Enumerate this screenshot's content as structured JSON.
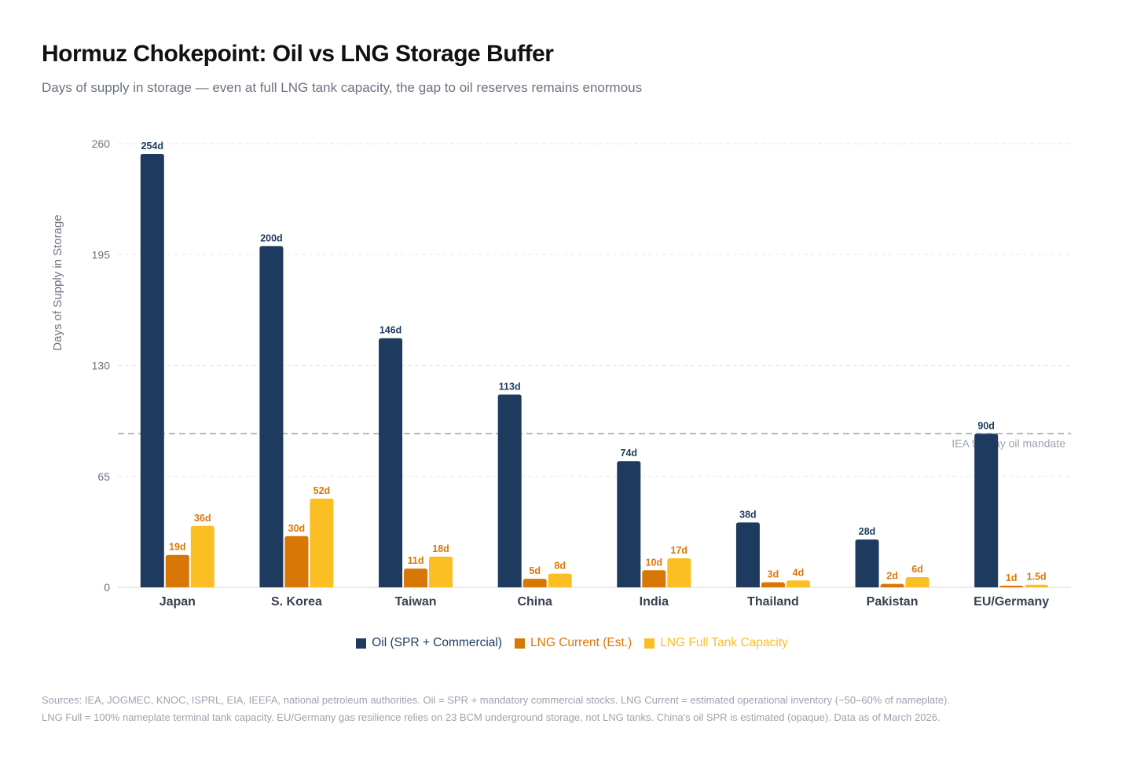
{
  "chart_data": {
    "type": "bar",
    "title": "Hormuz Chokepoint: Oil vs LNG Storage Buffer",
    "subtitle": "Days of supply in storage — even at full LNG tank capacity, the gap to oil reserves remains enormous",
    "ylabel": "Days of Supply in Storage",
    "xlabel": "",
    "ylim": [
      0,
      260
    ],
    "yticks": [
      0,
      65,
      130,
      195,
      260
    ],
    "grid": true,
    "categories": [
      "Japan",
      "S. Korea",
      "Taiwan",
      "China",
      "India",
      "Thailand",
      "Pakistan",
      "EU/Germany"
    ],
    "series": [
      {
        "name": "Oil (SPR + Commercial)",
        "color": "#1e3a5f",
        "label_color": "#1e3a5f",
        "values": [
          254,
          200,
          146,
          113,
          74,
          38,
          28,
          90
        ],
        "labels": [
          "254d",
          "200d",
          "146d",
          "113d",
          "74d",
          "38d",
          "28d",
          "90d"
        ]
      },
      {
        "name": "LNG Current (Est.)",
        "color": "#d97706",
        "label_color": "#d97706",
        "values": [
          19,
          30,
          11,
          5,
          10,
          3,
          2,
          1
        ],
        "labels": [
          "19d",
          "30d",
          "11d",
          "5d",
          "10d",
          "3d",
          "2d",
          "1d"
        ]
      },
      {
        "name": "LNG Full Tank Capacity",
        "color": "#fbbf24",
        "label_color": "#d97706",
        "values": [
          36,
          52,
          18,
          8,
          17,
          4,
          6,
          1.5
        ],
        "labels": [
          "36d",
          "52d",
          "18d",
          "8d",
          "17d",
          "4d",
          "6d",
          "1.5d"
        ]
      }
    ],
    "reference_line": {
      "value": 90,
      "label": "IEA 90-day oil mandate"
    },
    "legend_placement": "bottom-center"
  },
  "footer": {
    "line1": "Sources: IEA, JOGMEC, KNOC, ISPRL, EIA, IEEFA, national petroleum authorities. Oil = SPR + mandatory commercial stocks. LNG Current = estimated operational inventory (~50–60% of nameplate).",
    "line2": "LNG Full = 100% nameplate terminal tank capacity. EU/Germany gas resilience relies on 23 BCM underground storage, not LNG tanks. China's oil SPR is estimated (opaque). Data as of March 2026."
  }
}
